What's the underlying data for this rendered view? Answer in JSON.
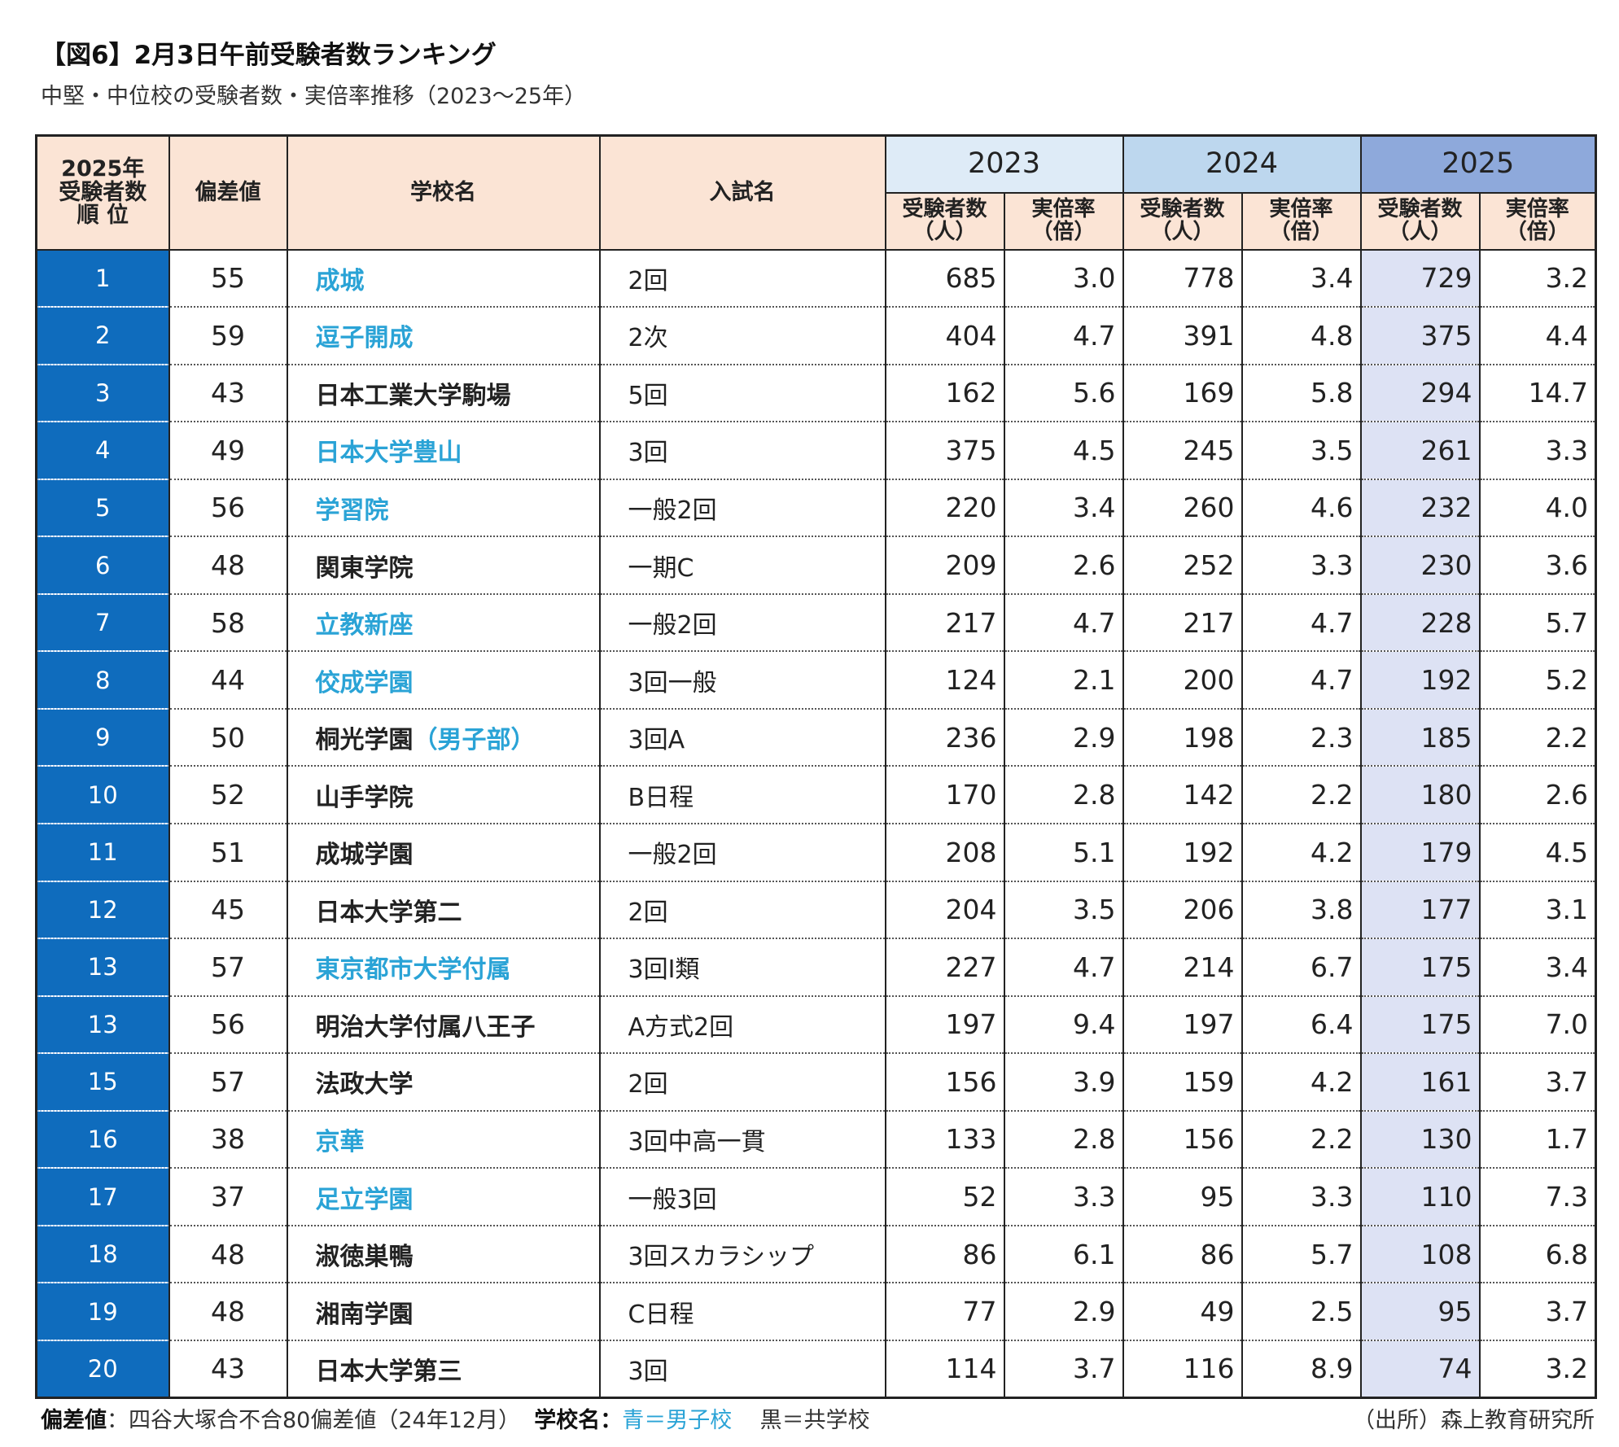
{
  "title": "【図6】2月3日午前受験者数ランキング",
  "subtitle": "中堅・中位校の受験者数・実倍率推移（2023〜25年）",
  "headers": {
    "rank_line1": "2025年",
    "rank_line2": "受験者数",
    "rank_line3": "順 位",
    "deviation": "偏差値",
    "school": "学校名",
    "exam": "入試名",
    "year_2023": "2023",
    "year_2024": "2024",
    "year_2025": "2025",
    "applicants_line1": "受験者数",
    "applicants_line2": "（人）",
    "ratio_line1": "実倍率",
    "ratio_line2": "（倍）"
  },
  "rows": [
    {
      "rank": "1",
      "deviation": "55",
      "school": "成城",
      "school_suffix": "",
      "boys": true,
      "exam": "2回",
      "a2023": "685",
      "r2023": "3.0",
      "a2024": "778",
      "r2024": "3.4",
      "a2025": "729",
      "r2025": "3.2"
    },
    {
      "rank": "2",
      "deviation": "59",
      "school": "逗子開成",
      "school_suffix": "",
      "boys": true,
      "exam": "2次",
      "a2023": "404",
      "r2023": "4.7",
      "a2024": "391",
      "r2024": "4.8",
      "a2025": "375",
      "r2025": "4.4"
    },
    {
      "rank": "3",
      "deviation": "43",
      "school": "日本工業大学駒場",
      "school_suffix": "",
      "boys": false,
      "exam": "5回",
      "a2023": "162",
      "r2023": "5.6",
      "a2024": "169",
      "r2024": "5.8",
      "a2025": "294",
      "r2025": "14.7"
    },
    {
      "rank": "4",
      "deviation": "49",
      "school": "日本大学豊山",
      "school_suffix": "",
      "boys": true,
      "exam": "3回",
      "a2023": "375",
      "r2023": "4.5",
      "a2024": "245",
      "r2024": "3.5",
      "a2025": "261",
      "r2025": "3.3"
    },
    {
      "rank": "5",
      "deviation": "56",
      "school": "学習院",
      "school_suffix": "",
      "boys": true,
      "exam": "一般2回",
      "a2023": "220",
      "r2023": "3.4",
      "a2024": "260",
      "r2024": "4.6",
      "a2025": "232",
      "r2025": "4.0"
    },
    {
      "rank": "6",
      "deviation": "48",
      "school": "関東学院",
      "school_suffix": "",
      "boys": false,
      "exam": "一期C",
      "a2023": "209",
      "r2023": "2.6",
      "a2024": "252",
      "r2024": "3.3",
      "a2025": "230",
      "r2025": "3.6"
    },
    {
      "rank": "7",
      "deviation": "58",
      "school": "立教新座",
      "school_suffix": "",
      "boys": true,
      "exam": "一般2回",
      "a2023": "217",
      "r2023": "4.7",
      "a2024": "217",
      "r2024": "4.7",
      "a2025": "228",
      "r2025": "5.7"
    },
    {
      "rank": "8",
      "deviation": "44",
      "school": "佼成学園",
      "school_suffix": "",
      "boys": true,
      "exam": "3回一般",
      "a2023": "124",
      "r2023": "2.1",
      "a2024": "200",
      "r2024": "4.7",
      "a2025": "192",
      "r2025": "5.2"
    },
    {
      "rank": "9",
      "deviation": "50",
      "school": "桐光学園",
      "school_suffix": "（男子部）",
      "boys": false,
      "exam": "3回A",
      "a2023": "236",
      "r2023": "2.9",
      "a2024": "198",
      "r2024": "2.3",
      "a2025": "185",
      "r2025": "2.2"
    },
    {
      "rank": "10",
      "deviation": "52",
      "school": "山手学院",
      "school_suffix": "",
      "boys": false,
      "exam": "B日程",
      "a2023": "170",
      "r2023": "2.8",
      "a2024": "142",
      "r2024": "2.2",
      "a2025": "180",
      "r2025": "2.6"
    },
    {
      "rank": "11",
      "deviation": "51",
      "school": "成城学園",
      "school_suffix": "",
      "boys": false,
      "exam": "一般2回",
      "a2023": "208",
      "r2023": "5.1",
      "a2024": "192",
      "r2024": "4.2",
      "a2025": "179",
      "r2025": "4.5"
    },
    {
      "rank": "12",
      "deviation": "45",
      "school": "日本大学第二",
      "school_suffix": "",
      "boys": false,
      "exam": "2回",
      "a2023": "204",
      "r2023": "3.5",
      "a2024": "206",
      "r2024": "3.8",
      "a2025": "177",
      "r2025": "3.1"
    },
    {
      "rank": "13",
      "deviation": "57",
      "school": "東京都市大学付属",
      "school_suffix": "",
      "boys": true,
      "exam": "3回Ⅰ類",
      "a2023": "227",
      "r2023": "4.7",
      "a2024": "214",
      "r2024": "6.7",
      "a2025": "175",
      "r2025": "3.4"
    },
    {
      "rank": "13",
      "deviation": "56",
      "school": "明治大学付属八王子",
      "school_suffix": "",
      "boys": false,
      "exam": "A方式2回",
      "a2023": "197",
      "r2023": "9.4",
      "a2024": "197",
      "r2024": "6.4",
      "a2025": "175",
      "r2025": "7.0"
    },
    {
      "rank": "15",
      "deviation": "57",
      "school": "法政大学",
      "school_suffix": "",
      "boys": false,
      "exam": "2回",
      "a2023": "156",
      "r2023": "3.9",
      "a2024": "159",
      "r2024": "4.2",
      "a2025": "161",
      "r2025": "3.7"
    },
    {
      "rank": "16",
      "deviation": "38",
      "school": "京華",
      "school_suffix": "",
      "boys": true,
      "exam": "3回中高一貫",
      "a2023": "133",
      "r2023": "2.8",
      "a2024": "156",
      "r2024": "2.2",
      "a2025": "130",
      "r2025": "1.7"
    },
    {
      "rank": "17",
      "deviation": "37",
      "school": "足立学園",
      "school_suffix": "",
      "boys": true,
      "exam": "一般3回",
      "a2023": "52",
      "r2023": "3.3",
      "a2024": "95",
      "r2024": "3.3",
      "a2025": "110",
      "r2025": "7.3"
    },
    {
      "rank": "18",
      "deviation": "48",
      "school": "淑徳巣鴨",
      "school_suffix": "",
      "boys": false,
      "exam": "3回スカラシップ",
      "a2023": "86",
      "r2023": "6.1",
      "a2024": "86",
      "r2024": "5.7",
      "a2025": "108",
      "r2025": "6.8"
    },
    {
      "rank": "19",
      "deviation": "48",
      "school": "湘南学園",
      "school_suffix": "",
      "boys": false,
      "exam": "C日程",
      "a2023": "77",
      "r2023": "2.9",
      "a2024": "49",
      "r2024": "2.5",
      "a2025": "95",
      "r2025": "3.7"
    },
    {
      "rank": "20",
      "deviation": "43",
      "school": "日本大学第三",
      "school_suffix": "",
      "boys": false,
      "exam": "3回",
      "a2023": "114",
      "r2023": "3.7",
      "a2024": "116",
      "r2024": "8.9",
      "a2025": "74",
      "r2025": "3.2"
    }
  ],
  "footer": {
    "deviation_label": "偏差値",
    "deviation_text": "：四谷大塚合不合80偏差値（24年12月）",
    "school_label": "学校名",
    "colon": "：",
    "blue_legend": "青＝男子校",
    "black_legend": "黒＝共学校",
    "source": "（出所）森上教育研究所"
  },
  "colors": {
    "rank_bg": "#0f6cbd",
    "boys_school": "#2aa3d6",
    "header_peach": "#fbe4d5",
    "year_2023": "#deebf7",
    "year_2024": "#bdd7ee",
    "year_2025": "#8ea9db",
    "col_2025_applicants": "#dde2f4"
  }
}
